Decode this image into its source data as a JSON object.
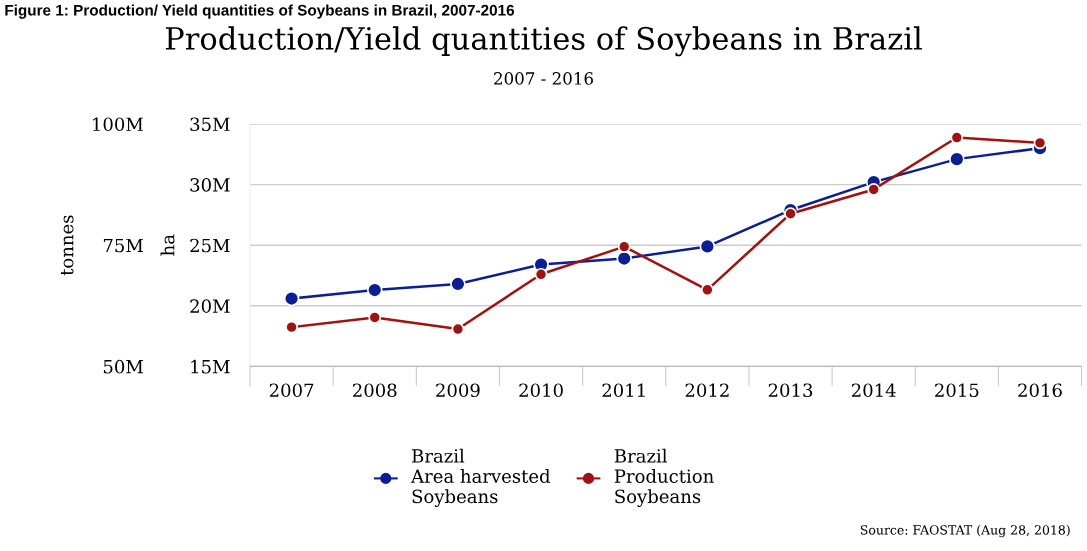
{
  "chart_data": {
    "type": "line",
    "title": "Production/Yield quantities of Soybeans in Brazil",
    "subtitle": "2007 - 2016",
    "ylabel": "ha",
    "y2label": "tonnes",
    "categories": [
      "2007",
      "2008",
      "2009",
      "2010",
      "2011",
      "2012",
      "2013",
      "2014",
      "2015",
      "2016"
    ],
    "series": [
      {
        "name": "Brazil\nArea harvested\nSoybeans",
        "color": "#0a1e96",
        "values": [
          20.6,
          21.3,
          21.8,
          23.4,
          23.9,
          24.9,
          27.9,
          30.2,
          32.1,
          33.0
        ]
      },
      {
        "name": "Brazil\nProduction\nSoybeans",
        "color": "#a31010",
        "axis": "y2",
        "values": [
          58.1,
          60.1,
          57.7,
          69.0,
          74.7,
          65.8,
          81.5,
          86.5,
          97.2,
          96.1
        ]
      }
    ],
    "ylim": [
      15,
      35
    ],
    "yticks": [
      {
        "value": 15,
        "label": "15M"
      },
      {
        "value": 20,
        "label": "20M"
      },
      {
        "value": 25,
        "label": "25M"
      },
      {
        "value": 30,
        "label": "30M"
      },
      {
        "value": 35,
        "label": "35M"
      }
    ],
    "y2lim": [
      50,
      100
    ],
    "y2ticks": [
      {
        "value": 50,
        "label": "50M"
      },
      {
        "value": 75,
        "label": "75M"
      },
      {
        "value": 100,
        "label": "100M"
      }
    ],
    "grid": "y",
    "legend": "bottom",
    "marker": "circle",
    "line_style": "solid",
    "annotations": [
      "Figure 1: Production/ Yield quantities of Soybeans in Brazil, 2007-2016",
      "Source: FAOSTAT (Aug 28, 2018)"
    ]
  }
}
